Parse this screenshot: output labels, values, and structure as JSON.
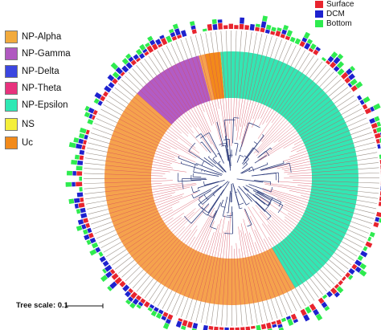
{
  "legend": [
    {
      "label": "NP-Alpha",
      "color": "#F2AA3C"
    },
    {
      "label": "NP-Gamma",
      "color": "#B059C0"
    },
    {
      "label": "NP-Delta",
      "color": "#3B46E0"
    },
    {
      "label": "NP-Theta",
      "color": "#E8327D"
    },
    {
      "label": "NP-Epsilon",
      "color": "#2EE8B4"
    },
    {
      "label": "NS",
      "color": "#F4EF3A"
    },
    {
      "label": "Uc",
      "color": "#F28A1A"
    }
  ],
  "tracks": [
    {
      "label": "Surface",
      "color": "#E8242E"
    },
    {
      "label": "DCM",
      "color": "#1E22CF"
    },
    {
      "label": "Bottom",
      "color": "#2EEB4F"
    }
  ],
  "scale": {
    "label": "Tree scale: 0.1"
  },
  "colors": {
    "alpha_band": "#F5A24D",
    "gamma_band": "#B25CC4",
    "delta_band": "#3B46E0",
    "theta_band": "#E8327D",
    "epsilon_band": "#33E6B3",
    "ns_band": "#F4EF3A",
    "uc_band": "#F28A1A",
    "branch_red": "#D74B5C",
    "branch_blue": "#2B3A7A"
  }
}
